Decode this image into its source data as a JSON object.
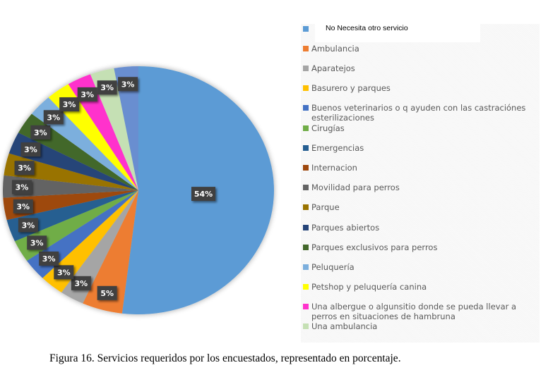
{
  "chart_data": {
    "type": "pie",
    "title": "",
    "caption": "Figura 16. Servicios requeridos por los encuestados, representado en porcentaje.",
    "legend_position": "right",
    "slices": [
      {
        "name": "No Necesita otro servicio",
        "value": 54,
        "label": "54%",
        "color": "#5B9BD5"
      },
      {
        "name": "Ambulancia",
        "value": 5,
        "label": "5%",
        "color": "#ED7D31"
      },
      {
        "name": "Aparatejos",
        "value": 3,
        "label": "3%",
        "color": "#A5A5A5"
      },
      {
        "name": "Basurero y parques",
        "value": 3,
        "label": "3%",
        "color": "#FFC000"
      },
      {
        "name": "Buenos veterinarios o q ayuden con las castraciónes esterilizaciones",
        "value": 3,
        "label": "3%",
        "color": "#4472C4"
      },
      {
        "name": "Cirugías",
        "value": 3,
        "label": "3%",
        "color": "#70AD47"
      },
      {
        "name": "Emergencias",
        "value": 3,
        "label": "3%",
        "color": "#255E91"
      },
      {
        "name": "Internacion",
        "value": 3,
        "label": "3%",
        "color": "#9E480E"
      },
      {
        "name": "Movilidad para perros",
        "value": 3,
        "label": "3%",
        "color": "#636363"
      },
      {
        "name": "Parque",
        "value": 3,
        "label": "3%",
        "color": "#997300"
      },
      {
        "name": "Parques abiertos",
        "value": 3,
        "label": "3%",
        "color": "#264478"
      },
      {
        "name": "Parques exclusivos para perros",
        "value": 3,
        "label": "3%",
        "color": "#43682B"
      },
      {
        "name": "Peluquería",
        "value": 3,
        "label": "3%",
        "color": "#7CAFDD"
      },
      {
        "name": "Petshop y peluquería canina",
        "value": 3,
        "label": "3%",
        "color": "#FFFF00"
      },
      {
        "name": "Una albergue o algunsitio donde se pueda llevar a perros en situaciones de hambruna",
        "value": 3,
        "label": "3%",
        "color": "#FF33CC"
      },
      {
        "name": "Una ambulancia",
        "value": 3,
        "label": "3%",
        "color": "#C5E0B4"
      },
      {
        "name": "",
        "value": 3,
        "label": "3%",
        "color": "#698ED0"
      }
    ]
  },
  "legend": {
    "overlay_label": "No Necesita otro servicio",
    "hidden_first_label": "Ambulancia"
  }
}
